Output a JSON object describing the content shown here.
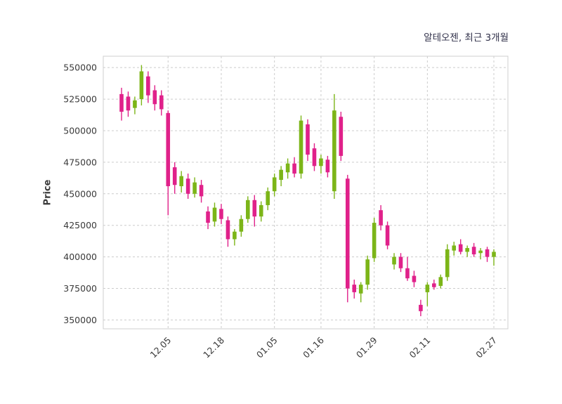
{
  "chart_data": {
    "type": "candlestick",
    "title": "알테오젠, 최근 3개월",
    "ylabel": "Price",
    "xlabel": "",
    "grid": true,
    "legend": false,
    "ylim": [
      343000,
      559000
    ],
    "yticks": [
      350000,
      375000,
      400000,
      425000,
      450000,
      475000,
      500000,
      525000,
      550000
    ],
    "xticklabels": [
      "12.05",
      "12.18",
      "01.05",
      "01.16",
      "01.29",
      "02.11",
      "02.27"
    ],
    "xtick_indices": [
      7,
      15,
      23,
      30,
      38,
      46,
      56
    ],
    "colors": {
      "up": "#7cb518",
      "down": "#e0218a",
      "grid": "#cccccc",
      "border": "#cfcfcf",
      "text": "#3a3a3a",
      "title": "#31314a"
    },
    "candles_format": [
      "open",
      "high",
      "low",
      "close"
    ],
    "candles": [
      [
        529000,
        534000,
        508000,
        515000
      ],
      [
        527000,
        531000,
        511000,
        516000
      ],
      [
        518000,
        527000,
        513000,
        524000
      ],
      [
        525000,
        552000,
        520000,
        547000
      ],
      [
        543000,
        547000,
        522000,
        528000
      ],
      [
        532000,
        536000,
        516000,
        521000
      ],
      [
        528000,
        532000,
        512000,
        517000
      ],
      [
        514000,
        516000,
        433000,
        456000
      ],
      [
        471000,
        475000,
        450000,
        457000
      ],
      [
        456000,
        468000,
        451000,
        464000
      ],
      [
        462000,
        466000,
        446000,
        450000
      ],
      [
        450000,
        463000,
        447000,
        459000
      ],
      [
        457000,
        461000,
        443000,
        448000
      ],
      [
        436000,
        440000,
        422000,
        427000
      ],
      [
        428000,
        443000,
        424000,
        439000
      ],
      [
        438000,
        442000,
        426000,
        430000
      ],
      [
        429000,
        432000,
        408000,
        414000
      ],
      [
        414000,
        422000,
        409000,
        420000
      ],
      [
        420000,
        433000,
        416000,
        430000
      ],
      [
        430000,
        448000,
        427000,
        445000
      ],
      [
        445000,
        449000,
        424000,
        432000
      ],
      [
        432000,
        444000,
        428000,
        441000
      ],
      [
        441000,
        455000,
        437000,
        452000
      ],
      [
        452000,
        466000,
        448000,
        463000
      ],
      [
        461000,
        472000,
        456000,
        469000
      ],
      [
        467000,
        478000,
        462000,
        474000
      ],
      [
        474000,
        479000,
        463000,
        466000
      ],
      [
        466000,
        512000,
        462000,
        508000
      ],
      [
        505000,
        509000,
        476000,
        481000
      ],
      [
        486000,
        490000,
        468000,
        472000
      ],
      [
        472000,
        481000,
        466000,
        478000
      ],
      [
        477000,
        480000,
        463000,
        467000
      ],
      [
        452000,
        529000,
        446000,
        516000
      ],
      [
        511000,
        515000,
        476000,
        480000
      ],
      [
        462000,
        465000,
        364000,
        375000
      ],
      [
        378000,
        382000,
        367000,
        372000
      ],
      [
        371000,
        380000,
        364000,
        378000
      ],
      [
        378000,
        401000,
        374000,
        398000
      ],
      [
        399000,
        431000,
        396000,
        427000
      ],
      [
        437000,
        441000,
        421000,
        425000
      ],
      [
        425000,
        428000,
        406000,
        409000
      ],
      [
        394000,
        403000,
        390000,
        400000
      ],
      [
        400000,
        403000,
        388000,
        391000
      ],
      [
        391000,
        400000,
        381000,
        383000
      ],
      [
        385000,
        389000,
        376000,
        380000
      ],
      [
        362000,
        366000,
        353000,
        357000
      ],
      [
        372000,
        380000,
        361000,
        378000
      ],
      [
        379000,
        382000,
        374000,
        376000
      ],
      [
        377000,
        386000,
        375000,
        384000
      ],
      [
        384000,
        410000,
        381000,
        406000
      ],
      [
        405000,
        412000,
        401000,
        409000
      ],
      [
        410000,
        414000,
        402000,
        404000
      ],
      [
        404000,
        409000,
        400000,
        407000
      ],
      [
        408000,
        411000,
        400000,
        402000
      ],
      [
        403000,
        407000,
        398000,
        405000
      ],
      [
        406000,
        408000,
        396000,
        400000
      ],
      [
        400000,
        406000,
        393000,
        404000
      ]
    ]
  }
}
